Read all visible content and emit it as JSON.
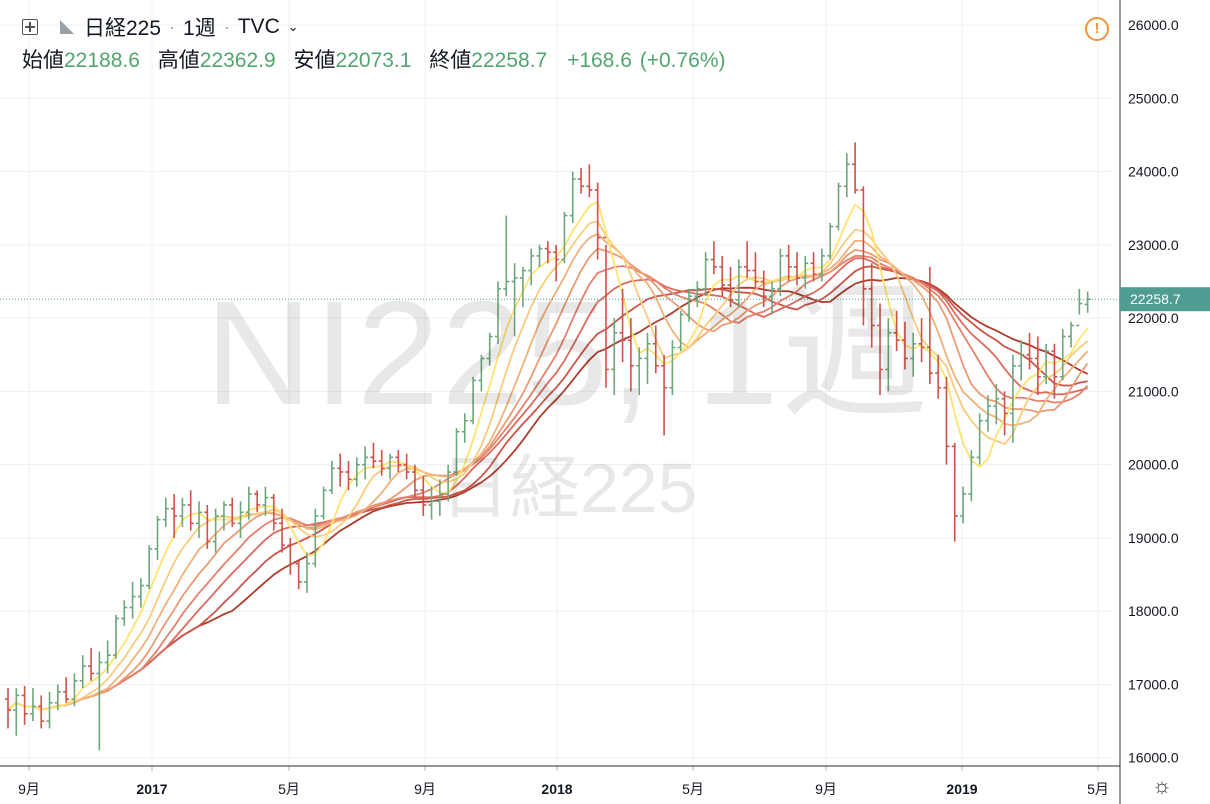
{
  "header": {
    "symbol": "日経225",
    "interval": "1週",
    "source": "TVC",
    "open_label": "始値",
    "open": "22188.6",
    "high_label": "高値",
    "high": "22362.9",
    "low_label": "安値",
    "low": "22073.1",
    "close_label": "終値",
    "close": "22258.7",
    "change": "+168.6",
    "change_pct": "(+0.76%)"
  },
  "watermark": {
    "main": "NI225, 1週",
    "sub": "日経225"
  },
  "last_price_label": "22258.7",
  "colors": {
    "up": "#6ea67c",
    "down": "#d0514a",
    "ribbon": [
      "#ffe36e",
      "#f8cc7c",
      "#f0b07a",
      "#eb9a74",
      "#e6806c",
      "#dc6a5e",
      "#cd5447",
      "#ad3c2a"
    ],
    "last_price_line": "#4f9c92"
  },
  "chart_data": {
    "type": "candlestick-ohlc",
    "ylim": [
      15700,
      26100
    ],
    "y_ticks": [
      "16000.0",
      "17000.0",
      "18000.0",
      "19000.0",
      "20000.0",
      "21000.0",
      "22000.0",
      "23000.0",
      "24000.0",
      "25000.0",
      "26000.0"
    ],
    "x_ticks": [
      "9月",
      "2017",
      "5月",
      "9月",
      "2018",
      "5月",
      "9月",
      "2019",
      "5月"
    ],
    "last_price": 22258.7,
    "series_ohlc": [
      {
        "name": "日経225 1週",
        "values": [
          [
            16800,
            16950,
            16400,
            16650
          ],
          [
            16650,
            16950,
            16300,
            16850
          ],
          [
            16850,
            16980,
            16450,
            16600
          ],
          [
            16600,
            16950,
            16500,
            16700
          ],
          [
            16700,
            16850,
            16400,
            16500
          ],
          [
            16500,
            16900,
            16400,
            16750
          ],
          [
            16750,
            17000,
            16650,
            16900
          ],
          [
            16900,
            17100,
            16750,
            16800
          ],
          [
            16800,
            17150,
            16700,
            17050
          ],
          [
            17050,
            17400,
            16950,
            17250
          ],
          [
            17250,
            17500,
            17050,
            17150
          ],
          [
            17150,
            17450,
            16100,
            17300
          ],
          [
            17300,
            17600,
            17150,
            17400
          ],
          [
            17400,
            17950,
            17350,
            17900
          ],
          [
            17900,
            18150,
            17800,
            18050
          ],
          [
            18050,
            18400,
            17900,
            18200
          ],
          [
            18200,
            18450,
            18050,
            18350
          ],
          [
            18350,
            18900,
            18300,
            18850
          ],
          [
            18850,
            19300,
            18700,
            19250
          ],
          [
            19250,
            19550,
            19150,
            19400
          ],
          [
            19400,
            19600,
            19000,
            19300
          ],
          [
            19300,
            19550,
            19150,
            19450
          ],
          [
            19450,
            19650,
            19100,
            19200
          ],
          [
            19200,
            19500,
            19000,
            19350
          ],
          [
            19350,
            19450,
            18850,
            18950
          ],
          [
            18950,
            19400,
            18800,
            19300
          ],
          [
            19300,
            19500,
            19100,
            19450
          ],
          [
            19450,
            19550,
            19150,
            19200
          ],
          [
            19200,
            19500,
            19000,
            19350
          ],
          [
            19350,
            19700,
            19250,
            19600
          ],
          [
            19600,
            19650,
            19350,
            19450
          ],
          [
            19450,
            19700,
            19300,
            19550
          ],
          [
            19550,
            19600,
            19100,
            19200
          ],
          [
            19200,
            19400,
            18800,
            18900
          ],
          [
            18900,
            19000,
            18500,
            18650
          ],
          [
            18650,
            18700,
            18300,
            18400
          ],
          [
            18400,
            18800,
            18250,
            18650
          ],
          [
            18650,
            19400,
            18600,
            19300
          ],
          [
            19300,
            19700,
            19250,
            19650
          ],
          [
            19650,
            20050,
            19600,
            19950
          ],
          [
            19950,
            20150,
            19700,
            19900
          ],
          [
            19900,
            20050,
            19650,
            19800
          ],
          [
            19800,
            20100,
            19700,
            20000
          ],
          [
            20000,
            20250,
            19800,
            20100
          ],
          [
            20100,
            20300,
            19950,
            20050
          ],
          [
            20050,
            20200,
            19850,
            19950
          ],
          [
            19950,
            20150,
            19800,
            20100
          ],
          [
            20100,
            20200,
            19900,
            20000
          ],
          [
            20000,
            20150,
            19800,
            19900
          ],
          [
            19900,
            20000,
            19550,
            19650
          ],
          [
            19650,
            19850,
            19300,
            19450
          ],
          [
            19450,
            19700,
            19250,
            19500
          ],
          [
            19500,
            19800,
            19300,
            19600
          ],
          [
            19600,
            20000,
            19500,
            19900
          ],
          [
            19900,
            20500,
            19850,
            20450
          ],
          [
            20450,
            20700,
            20300,
            20600
          ],
          [
            20600,
            21200,
            20550,
            21150
          ],
          [
            21150,
            21500,
            21000,
            21450
          ],
          [
            21450,
            21800,
            21350,
            21750
          ],
          [
            21750,
            22500,
            21650,
            22400
          ],
          [
            22400,
            23400,
            22300,
            22500
          ],
          [
            22500,
            22750,
            21750,
            22550
          ],
          [
            22550,
            22700,
            22150,
            22650
          ],
          [
            22650,
            22950,
            22450,
            22850
          ],
          [
            22850,
            23000,
            22700,
            22950
          ],
          [
            22950,
            23050,
            22750,
            22900
          ],
          [
            22900,
            23000,
            22500,
            22800
          ],
          [
            22800,
            23450,
            22750,
            23400
          ],
          [
            23400,
            24000,
            23300,
            23900
          ],
          [
            23900,
            24050,
            23700,
            23800
          ],
          [
            23800,
            24100,
            23650,
            23750
          ],
          [
            23750,
            23850,
            22800,
            23100
          ],
          [
            23100,
            23000,
            21050,
            21300
          ],
          [
            21300,
            22000,
            20950,
            21800
          ],
          [
            21800,
            22400,
            21400,
            21700
          ],
          [
            21700,
            22000,
            21000,
            21350
          ],
          [
            21350,
            21600,
            20950,
            21450
          ],
          [
            21450,
            21800,
            21100,
            21650
          ],
          [
            21650,
            21900,
            21250,
            21350
          ],
          [
            21350,
            21500,
            20400,
            21050
          ],
          [
            21050,
            21700,
            20950,
            21600
          ],
          [
            21600,
            22100,
            21550,
            22050
          ],
          [
            22050,
            22400,
            21950,
            22300
          ],
          [
            22300,
            22500,
            22150,
            22400
          ],
          [
            22400,
            22900,
            22300,
            22800
          ],
          [
            22800,
            23050,
            22600,
            22700
          ],
          [
            22700,
            22850,
            22300,
            22450
          ],
          [
            22450,
            22700,
            22150,
            22250
          ],
          [
            22250,
            22800,
            22150,
            22700
          ],
          [
            22700,
            23050,
            22550,
            22650
          ],
          [
            22650,
            22900,
            22400,
            22500
          ],
          [
            22500,
            22650,
            22150,
            22300
          ],
          [
            22300,
            22500,
            22050,
            22400
          ],
          [
            22400,
            22950,
            22300,
            22850
          ],
          [
            22850,
            23000,
            22500,
            22700
          ],
          [
            22700,
            22900,
            22450,
            22550
          ],
          [
            22550,
            22850,
            22400,
            22750
          ],
          [
            22750,
            22900,
            22500,
            22600
          ],
          [
            22600,
            22950,
            22500,
            22850
          ],
          [
            22850,
            23300,
            22800,
            23250
          ],
          [
            23250,
            23850,
            23200,
            23800
          ],
          [
            23800,
            24250,
            23650,
            24100
          ],
          [
            24100,
            24400,
            23700,
            23750
          ],
          [
            23750,
            23800,
            21900,
            22400
          ],
          [
            22400,
            22750,
            21600,
            21900
          ],
          [
            21900,
            22200,
            20950,
            21300
          ],
          [
            21300,
            22000,
            21000,
            21800
          ],
          [
            21800,
            22100,
            21550,
            21700
          ],
          [
            21700,
            21950,
            21300,
            21450
          ],
          [
            21450,
            21800,
            21200,
            21650
          ],
          [
            21650,
            22000,
            21400,
            21600
          ],
          [
            21600,
            22700,
            21100,
            21250
          ],
          [
            21250,
            21500,
            20900,
            21050
          ],
          [
            21050,
            21200,
            20000,
            20250
          ],
          [
            20250,
            20300,
            18950,
            19300
          ],
          [
            19300,
            19700,
            19200,
            19600
          ],
          [
            19600,
            20200,
            19500,
            20100
          ],
          [
            20100,
            20700,
            20000,
            20600
          ],
          [
            20600,
            20950,
            20450,
            20800
          ],
          [
            20800,
            21100,
            20550,
            20900
          ],
          [
            20900,
            21000,
            20400,
            20700
          ],
          [
            20700,
            21500,
            20300,
            21350
          ],
          [
            21350,
            21700,
            21150,
            21500
          ],
          [
            21500,
            21800,
            21300,
            21450
          ],
          [
            21450,
            21750,
            20950,
            21200
          ],
          [
            21200,
            21650,
            21100,
            21550
          ],
          [
            21550,
            21650,
            20900,
            21200
          ],
          [
            21200,
            21850,
            21150,
            21750
          ],
          [
            21750,
            21950,
            21600,
            21900
          ],
          [
            21900,
            22400,
            22050,
            22200
          ],
          [
            22188.6,
            22362.9,
            22073.1,
            22258.7
          ]
        ]
      }
    ]
  }
}
